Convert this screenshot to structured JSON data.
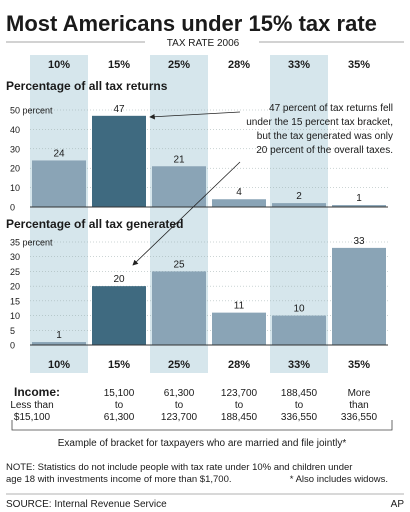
{
  "title": "Most Americans under 15% tax rate",
  "subtitle": "TAX RATE 2006",
  "brackets": [
    "10%",
    "15%",
    "25%",
    "28%",
    "33%",
    "35%"
  ],
  "shaded_columns": [
    0,
    2,
    4
  ],
  "highlight_index": 1,
  "colors": {
    "bar": "#8aa4b6",
    "highlight_bar": "#3f6a80",
    "shade": "#d6e6ec",
    "text": "#1a1a1a",
    "axis": "#333333"
  },
  "chart_data": [
    {
      "type": "bar",
      "title": "Percentage of all tax returns",
      "categories": [
        "10%",
        "15%",
        "25%",
        "28%",
        "33%",
        "35%"
      ],
      "values": [
        24,
        47,
        21,
        4,
        2,
        1
      ],
      "ylim": [
        0,
        50
      ],
      "yticks": [
        0,
        10,
        20,
        30,
        40,
        50
      ],
      "ytick_labels": [
        "0",
        "10",
        "20",
        "30",
        "40",
        "50 percent"
      ]
    },
    {
      "type": "bar",
      "title": "Percentage of all tax generated",
      "categories": [
        "10%",
        "15%",
        "25%",
        "28%",
        "33%",
        "35%"
      ],
      "values": [
        1,
        20,
        25,
        11,
        10,
        33
      ],
      "ylim": [
        0,
        35
      ],
      "yticks": [
        0,
        5,
        10,
        15,
        20,
        25,
        30,
        35
      ],
      "ytick_labels": [
        "0",
        "5",
        "10",
        "15",
        "20",
        "25",
        "30",
        "35 percent"
      ]
    }
  ],
  "annotation": [
    "47 percent of tax returns fell",
    "under the 15 percent tax bracket,",
    "but the tax generated was only",
    "20 percent of the overall taxes."
  ],
  "income": {
    "label": "Income:",
    "ranges": [
      [
        "Less than",
        "$15,100"
      ],
      [
        "15,100",
        "to",
        "61,300"
      ],
      [
        "61,300",
        "to",
        "123,700"
      ],
      [
        "123,700",
        "to",
        "188,450"
      ],
      [
        "188,450",
        "to",
        "336,550"
      ],
      [
        "More",
        "than",
        "336,550"
      ]
    ],
    "caption": "Example of bracket for taxpayers who are married and file jointly*"
  },
  "note": [
    "NOTE: Statistics do not include people with tax rate under 10% and children under",
    "age 18 with investments income of more than $1,700.",
    "* Also includes widows."
  ],
  "source": "SOURCE: Internal Revenue Service",
  "credit": "AP"
}
